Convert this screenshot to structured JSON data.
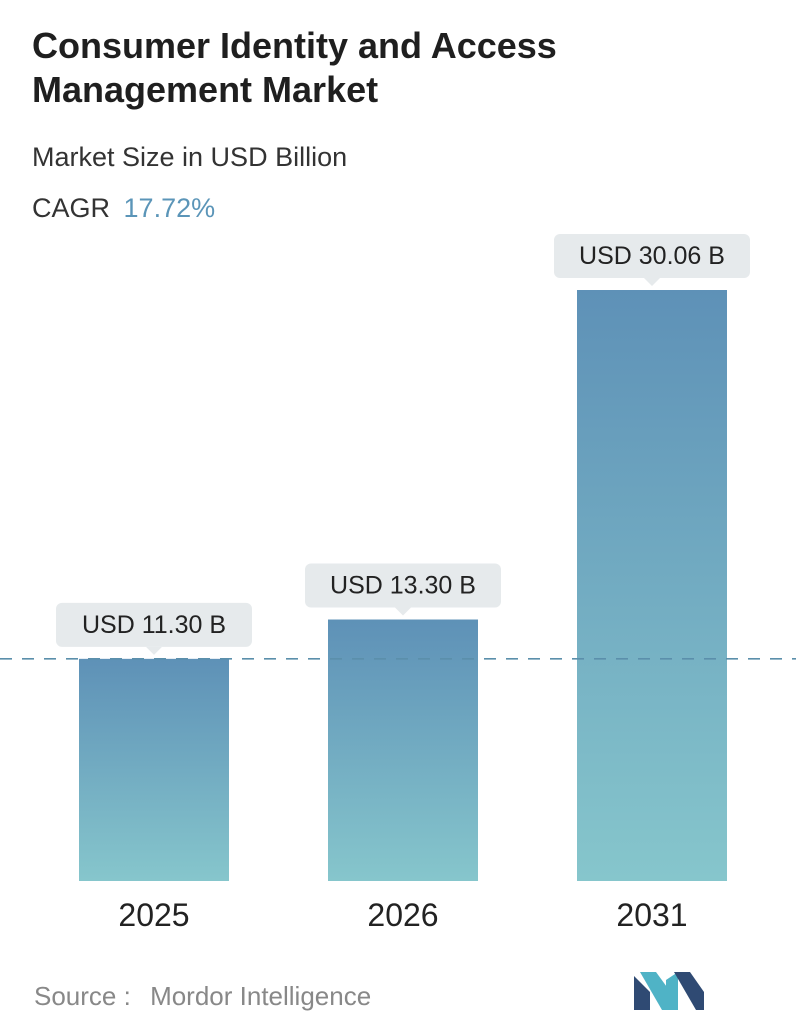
{
  "title_line1": "Consumer Identity and Access",
  "title_line2": "Management Market",
  "subtitle": "Market Size in USD Billion",
  "cagr": {
    "label": "CAGR",
    "value": "17.72%"
  },
  "source": {
    "label": "Source :",
    "value": "Mordor Intelligence"
  },
  "colors": {
    "bar_top": "#5e91b7",
    "bar_bottom": "#86c6cc",
    "reference_line": "#5b8fab",
    "label_box": "#e6eaec",
    "accent": "#5b95b8"
  },
  "chart_data": {
    "type": "bar",
    "categories": [
      "2025",
      "2026",
      "2031"
    ],
    "values": [
      11.3,
      13.3,
      30.06
    ],
    "data_labels": [
      "USD 11.30 B",
      "USD 13.30 B",
      "USD 30.06 B"
    ],
    "title": "Consumer Identity and Access Management Market",
    "subtitle": "Market Size in USD Billion",
    "xlabel": "",
    "ylabel": "",
    "ylim": [
      0,
      30.06
    ],
    "reference_line_value": 11.3,
    "grid": false,
    "legend": "none"
  }
}
